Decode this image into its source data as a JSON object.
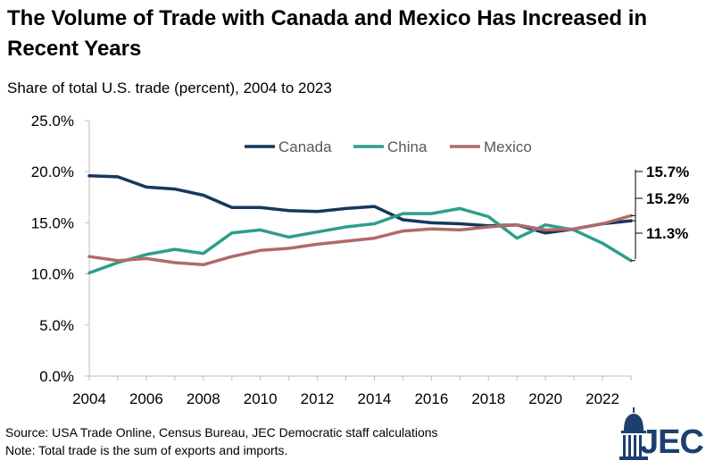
{
  "title": "The Volume of Trade with Canada and Mexico Has Increased in Recent Years",
  "subtitle": "Share of total U.S. trade (percent), 2004 to 2023",
  "source": "Source: USA Trade Online, Census Bureau, JEC Democratic staff calculations",
  "note": "Note: Total trade is the sum of exports and imports.",
  "logo_text": "JEC",
  "chart_data": {
    "type": "line",
    "x": [
      2004,
      2005,
      2006,
      2007,
      2008,
      2009,
      2010,
      2011,
      2012,
      2013,
      2014,
      2015,
      2016,
      2017,
      2018,
      2019,
      2020,
      2021,
      2022,
      2023
    ],
    "xticks": [
      2004,
      2006,
      2008,
      2010,
      2012,
      2014,
      2016,
      2018,
      2020,
      2022
    ],
    "xlim": [
      2004,
      2023
    ],
    "ylim": [
      0,
      25
    ],
    "yticks": [
      0,
      5,
      10,
      15,
      20,
      25
    ],
    "ytick_labels": [
      "0.0%",
      "5.0%",
      "10.0%",
      "15.0%",
      "20.0%",
      "25.0%"
    ],
    "grid": false,
    "legend_position": "top",
    "series": [
      {
        "name": "Canada",
        "color": "#17375e",
        "values": [
          19.6,
          19.5,
          18.5,
          18.3,
          17.7,
          16.5,
          16.5,
          16.2,
          16.1,
          16.4,
          16.6,
          15.3,
          15.0,
          14.9,
          14.7,
          14.8,
          14.0,
          14.4,
          14.9,
          15.2
        ]
      },
      {
        "name": "China",
        "color": "#2e9e8a",
        "values": [
          10.1,
          11.1,
          11.9,
          12.4,
          12.0,
          14.0,
          14.3,
          13.6,
          14.1,
          14.6,
          14.9,
          15.9,
          15.9,
          16.4,
          15.6,
          13.5,
          14.8,
          14.3,
          13.0,
          11.3
        ]
      },
      {
        "name": "Mexico",
        "color": "#b06a6a",
        "values": [
          11.7,
          11.3,
          11.5,
          11.1,
          10.9,
          11.7,
          12.3,
          12.5,
          12.9,
          13.2,
          13.5,
          14.2,
          14.4,
          14.3,
          14.6,
          14.8,
          14.3,
          14.4,
          14.9,
          15.7
        ]
      }
    ],
    "end_labels": [
      {
        "series": "Mexico",
        "text": "15.7%"
      },
      {
        "series": "Canada",
        "text": "15.2%"
      },
      {
        "series": "China",
        "text": "11.3%"
      }
    ]
  }
}
